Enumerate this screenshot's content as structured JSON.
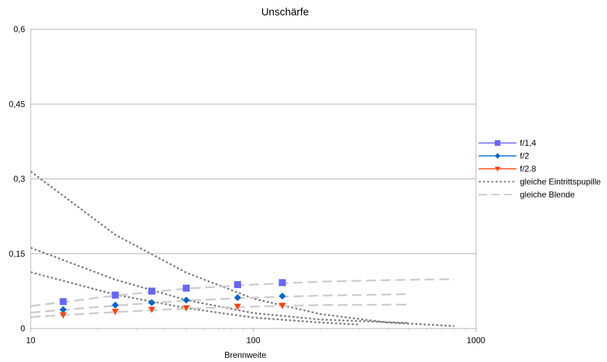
{
  "chart_data": {
    "type": "scatter",
    "title": "Unschärfe",
    "xlabel": "Brennweite",
    "ylabel": "",
    "xscale": "log",
    "xlim": [
      10,
      1000
    ],
    "ylim": [
      0,
      0.6
    ],
    "xticks": [
      "10",
      "100",
      "1000"
    ],
    "yticks": [
      "0",
      "0,15",
      "0,3",
      "0,45",
      "0,6"
    ],
    "grid": "horizontal major lines",
    "legend_position": "right",
    "series": [
      {
        "name": "f/1,4",
        "color": "#6666ff",
        "marker": "square",
        "x": [
          14,
          24,
          35,
          50,
          85,
          135
        ],
        "y": [
          0.054,
          0.067,
          0.075,
          0.081,
          0.088,
          0.092
        ]
      },
      {
        "name": "f/2",
        "color": "#0066cc",
        "marker": "diamond",
        "x": [
          14,
          24,
          35,
          50,
          85,
          135
        ],
        "y": [
          0.038,
          0.047,
          0.052,
          0.057,
          0.062,
          0.065
        ]
      },
      {
        "name": "f/2.8",
        "color": "#ff420e",
        "marker": "triangle-down",
        "x": [
          14,
          24,
          35,
          50,
          85,
          135
        ],
        "y": [
          0.027,
          0.034,
          0.038,
          0.041,
          0.044,
          0.046
        ]
      },
      {
        "name": "gleiche Eintrittspupille",
        "color": "#808080",
        "style": "dotted",
        "curves": [
          {
            "x": [
              10,
              24,
              50,
              100,
              200,
              400,
              800
            ],
            "y": [
              0.315,
              0.188,
              0.112,
              0.06,
              0.029,
              0.012,
              0.005
            ]
          },
          {
            "x": [
              10,
              24,
              50,
              100,
              200,
              500
            ],
            "y": [
              0.162,
              0.098,
              0.057,
              0.031,
              0.018,
              0.011
            ]
          },
          {
            "x": [
              10,
              24,
              50,
              100,
              200,
              300
            ],
            "y": [
              0.113,
              0.068,
              0.041,
              0.022,
              0.012,
              0.008
            ]
          }
        ]
      },
      {
        "name": "gleiche Blende",
        "color": "#cccccc",
        "style": "dashed",
        "curves": [
          {
            "x": [
              10,
              24,
              50,
              100,
              200,
              400,
              800
            ],
            "y": [
              0.045,
              0.066,
              0.08,
              0.088,
              0.094,
              0.097,
              0.099
            ]
          },
          {
            "x": [
              10,
              24,
              50,
              100,
              200,
              500
            ],
            "y": [
              0.032,
              0.046,
              0.056,
              0.062,
              0.066,
              0.069
            ]
          },
          {
            "x": [
              10,
              24,
              50,
              100,
              200,
              500
            ],
            "y": [
              0.023,
              0.033,
              0.04,
              0.044,
              0.047,
              0.048
            ]
          }
        ]
      }
    ]
  }
}
